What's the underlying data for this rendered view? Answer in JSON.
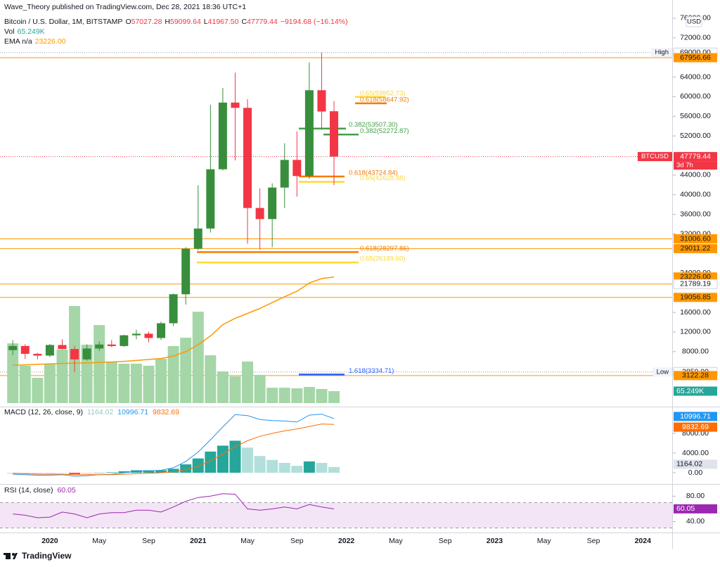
{
  "header": {
    "publisher": "Wave_Theory published on TradingView.com, Dec 28, 2021 18:36 UTC+1",
    "symbol": "Bitcoin / U.S. Dollar, 1M, BITSTAMP",
    "ohlc": [
      {
        "key": "O",
        "value": "57027.28"
      },
      {
        "key": "H",
        "value": "59099.64"
      },
      {
        "key": "L",
        "value": "41967.50"
      },
      {
        "key": "C",
        "value": "47779.44"
      }
    ],
    "change": "−9194.68 (−16.14%)",
    "vol_label": "Vol",
    "ema_label": "EMA n/a",
    "currency": "USD"
  },
  "footer": "TradingView",
  "chart_data": [
    {
      "type": "candlestick",
      "up_color": "#388e3c",
      "down_color": "#f23645",
      "open": [
        8300,
        9150,
        7550,
        7190,
        9350,
        8530,
        6410,
        8630,
        9450,
        9135,
        11330,
        11650,
        10780,
        13790,
        19700,
        28990,
        33110,
        45190,
        58800,
        57720,
        37300,
        35040,
        41460,
        47100,
        43820,
        61318,
        57027.28
      ],
      "high": [
        10350,
        9500,
        7750,
        9580,
        10500,
        9190,
        9470,
        10070,
        10380,
        11440,
        12480,
        12070,
        14100,
        19850,
        29300,
        41950,
        58350,
        61780,
        64900,
        59500,
        41300,
        42320,
        50500,
        52900,
        67000,
        69000,
        59099.64
      ],
      "low": [
        7300,
        6500,
        6430,
        6860,
        8450,
        3850,
        6150,
        8120,
        8900,
        8980,
        10520,
        9880,
        10380,
        13200,
        17600,
        28700,
        32300,
        44950,
        47000,
        30000,
        28800,
        29300,
        37300,
        39600,
        43300,
        53256,
        41967.5
      ],
      "close": [
        9150,
        7550,
        7190,
        9350,
        8530,
        6410,
        8630,
        9450,
        9135,
        11330,
        11650,
        10780,
        13790,
        19700,
        28990,
        33110,
        45190,
        58800,
        57720,
        37300,
        35040,
        41460,
        47100,
        43820,
        61318,
        56974.12,
        47779.44
      ],
      "volume": {
        "color": "#a5d6a7",
        "label_color": "#26a69a",
        "values": [
          326,
          204,
          138,
          215,
          292,
          530,
          319,
          426,
          223,
          215,
          215,
          204,
          242,
          311,
          357,
          499,
          261,
          173,
          146,
          227,
          154,
          84,
          84,
          81,
          88,
          77,
          65.249
        ],
        "last_label": "65.249K"
      },
      "ema": {
        "color": "#ff9800",
        "values": [
          5200,
          5300,
          5400,
          5500,
          5600,
          5650,
          5700,
          5800,
          5900,
          6000,
          6200,
          6400,
          6600,
          7100,
          8000,
          9400,
          11200,
          13500,
          14800,
          15800,
          16800,
          18000,
          19200,
          20300,
          22000,
          22900,
          23226
        ]
      },
      "ylim": [
        -2500,
        78000
      ],
      "yticks": [
        {
          "value": 8000,
          "label": "8000.00"
        },
        {
          "value": 12000,
          "label": "12000.00"
        },
        {
          "value": 16000,
          "label": "16000.00"
        },
        {
          "value": 24000,
          "label": "24000.00"
        },
        {
          "value": 32000,
          "label": "32000.00"
        },
        {
          "value": 36000,
          "label": "36000.00"
        },
        {
          "value": 40000,
          "label": "40000.00"
        },
        {
          "value": 44000,
          "label": "44000.00"
        },
        {
          "value": 52000,
          "label": "52000.00"
        },
        {
          "value": 56000,
          "label": "56000.00"
        },
        {
          "value": 60000,
          "label": "60000.00"
        },
        {
          "value": 64000,
          "label": "64000.00"
        },
        {
          "value": 72000,
          "label": "72000.00"
        },
        {
          "value": 76000,
          "label": "76000.00"
        }
      ],
      "xticks": [
        "2020",
        "May",
        "Sep",
        "2021",
        "May",
        "Sep",
        "2022",
        "May",
        "Sep",
        "2023",
        "May",
        "Sep",
        "2024"
      ],
      "price_labels": [
        {
          "value": 69000,
          "label": "69000.00",
          "tag": "High",
          "bg": "#ffffff",
          "fg": "#131722",
          "line": "dotted",
          "line_color": "#9598a1"
        },
        {
          "value": 67956.66,
          "label": "67956.66",
          "bg": "#ff9800",
          "fg": "#131722",
          "line": "solid",
          "line_color": "#ff9800"
        },
        {
          "value": 47779.44,
          "label": "47779.44",
          "tag": "BTCUSD",
          "sub": "3d 7h",
          "bg": "#f23645",
          "fg": "#ffffff",
          "line": "dotted",
          "line_color": "#f23645"
        },
        {
          "value": 31006.6,
          "label": "31006.60",
          "bg": "#ff9800",
          "fg": "#131722",
          "line": "solid",
          "line_color": "#ff9800"
        },
        {
          "value": 29011.22,
          "label": "29011.22",
          "bg": "#ff9800",
          "fg": "#131722",
          "line": "solid",
          "line_color": "#ff9800"
        },
        {
          "value": 23226,
          "label": "23226.00",
          "bg": "#ff9800",
          "fg": "#131722",
          "line": "none",
          "line_color": "#ff9800"
        },
        {
          "value": 21789.19,
          "label": "21789.19",
          "bg": "#ffffff",
          "fg": "#131722",
          "line": "solid",
          "line_color": "#ff9800"
        },
        {
          "value": 19056.85,
          "label": "19056.85",
          "bg": "#ff9800",
          "fg": "#131722",
          "line": "solid",
          "line_color": "#ff9800"
        },
        {
          "value": 3850,
          "label": "3850.00",
          "tag": "Low",
          "bg": "#ffffff",
          "fg": "#131722",
          "line": "dotted",
          "line_color": "#9598a1"
        },
        {
          "value": 3122.28,
          "label": "3122.28",
          "bg": "#ff9800",
          "fg": "#131722",
          "line": "solid",
          "line_color": "#ff9800"
        }
      ],
      "fib": [
        {
          "value": 59952.73,
          "label": "0.65(59952.73)",
          "color": "#fdd835"
        },
        {
          "value": 58647.92,
          "label": "0.618(58647.92)",
          "color": "#f57c00"
        },
        {
          "value": 53507.3,
          "label": "0.382(53507.30)",
          "color": "#43a047"
        },
        {
          "value": 52272.87,
          "label": "0.382(52272.87)",
          "color": "#43a047"
        },
        {
          "value": 43724.84,
          "label": "0.618(43724.84)",
          "color": "#f57c00"
        },
        {
          "value": 42628.48,
          "label": "0.65(42628.48)",
          "color": "#fdd835"
        },
        {
          "value": 28297.86,
          "label": "0.618(28297.86)",
          "color": "#f57c00"
        },
        {
          "value": 26189.6,
          "label": "0.65(26189.60)",
          "color": "#fdd835"
        },
        {
          "value": 3334.71,
          "label": "1.618(3334.71)",
          "color": "#2962ff"
        }
      ]
    },
    {
      "type": "macd",
      "title": "MACD (12, 26, close, 9)",
      "histogram": {
        "values": [
          -200,
          -200,
          -200,
          -200,
          -100,
          -300,
          -200,
          0,
          100,
          300,
          500,
          500,
          500,
          800,
          1700,
          2900,
          4300,
          5500,
          6500,
          5100,
          3400,
          2600,
          2000,
          1400,
          2300,
          2000,
          1164.02
        ],
        "colors": [
          "#26a69a",
          "#b2dfdb",
          "#ffcdd2",
          "#ef5350"
        ],
        "last_label": "1164.02",
        "label_bg": "#e0e3eb"
      },
      "series": [
        {
          "name": "MACD",
          "color": "#2196f3",
          "values": [
            -300,
            -400,
            -500,
            -500,
            -400,
            -700,
            -600,
            -400,
            -300,
            0,
            300,
            400,
            500,
            1000,
            2300,
            4200,
            6700,
            9300,
            11800,
            11600,
            10800,
            10600,
            10500,
            10300,
            11700,
            11900,
            10996.71
          ],
          "last_label": "10996.71"
        },
        {
          "name": "Signal",
          "color": "#ff6d00",
          "values": [
            -100,
            -200,
            -300,
            -300,
            -300,
            -400,
            -400,
            -400,
            -400,
            -300,
            -200,
            -100,
            0,
            200,
            600,
            1300,
            2400,
            3800,
            5300,
            6500,
            7400,
            8000,
            8500,
            8900,
            9400,
            9900,
            9832.69
          ],
          "last_label": "9832.69"
        }
      ],
      "ylim": [
        -2000,
        13000
      ],
      "yticks": [
        {
          "value": 0,
          "label": "0.00"
        },
        {
          "value": 4000,
          "label": "4000.00"
        },
        {
          "value": 8000,
          "label": "8000.00"
        }
      ]
    },
    {
      "type": "line",
      "title": "RSI (14, close)",
      "series": [
        {
          "name": "RSI",
          "color": "#9c27b0",
          "values": [
            52,
            50,
            46,
            47,
            55,
            52,
            46,
            52,
            54,
            54,
            58,
            58,
            55,
            63,
            72,
            78,
            80,
            84,
            83,
            60,
            58,
            60,
            63,
            60,
            67,
            63,
            60.05
          ],
          "last_label": "60.05"
        }
      ],
      "band": [
        30,
        70
      ],
      "band_color": "#f3e5f5",
      "ylim": [
        25,
        97
      ],
      "yticks": [
        {
          "value": 40,
          "label": "40.00"
        },
        {
          "value": 80,
          "label": "80.00"
        }
      ]
    }
  ]
}
